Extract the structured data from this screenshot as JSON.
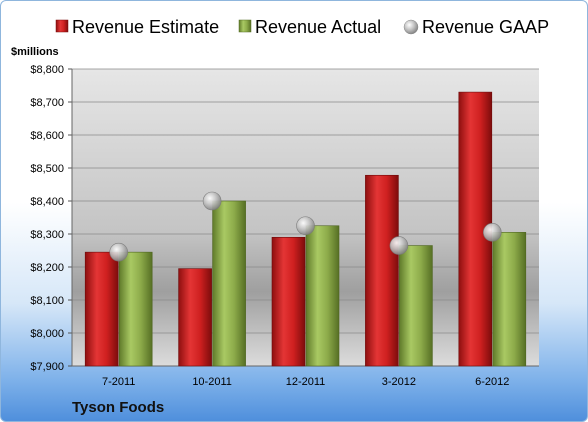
{
  "chart_data": {
    "type": "bar",
    "company": "Tyson Foods",
    "ylabel": "$millions",
    "categories": [
      "7-2011",
      "10-2011",
      "12-2011",
      "3-2012",
      "6-2012"
    ],
    "series": [
      {
        "name": "Revenue Estimate",
        "type": "bar",
        "color": "#cc1f1f",
        "values": [
          8245,
          8195,
          8290,
          8478,
          8730
        ]
      },
      {
        "name": "Revenue Actual",
        "type": "bar",
        "color": "#8fb04a",
        "values": [
          8245,
          8400,
          8325,
          8265,
          8305
        ]
      },
      {
        "name": "Revenue GAAP",
        "type": "marker",
        "color": "#b9b9b9",
        "values": [
          8245,
          8400,
          8325,
          8265,
          8305
        ]
      }
    ],
    "ylim": [
      7900,
      8800
    ],
    "yticks": [
      7900,
      8000,
      8100,
      8200,
      8300,
      8400,
      8500,
      8600,
      8700,
      8800
    ],
    "ytick_labels": [
      "$7,900",
      "$8,000",
      "$8,100",
      "$8,200",
      "$8,300",
      "$8,400",
      "$8,500",
      "$8,600",
      "$8,700",
      "$8,800"
    ],
    "grid": true,
    "legend_position": "top"
  }
}
